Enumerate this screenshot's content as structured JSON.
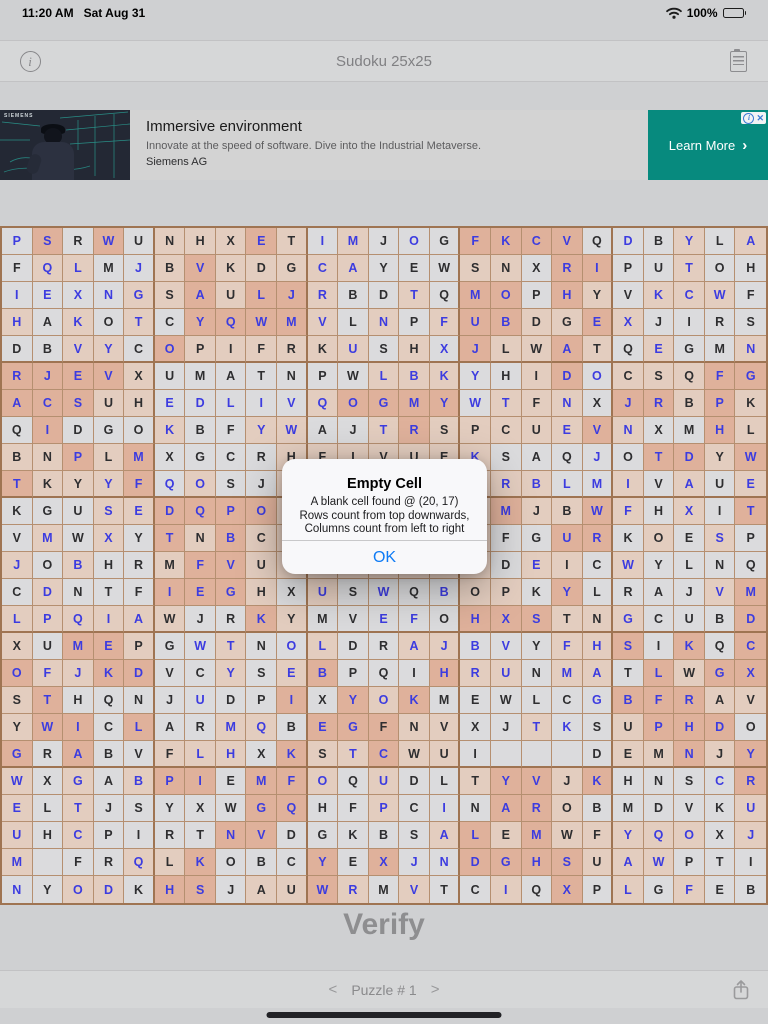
{
  "status_bar": {
    "time": "11:20 AM",
    "date": "Sat Aug 31",
    "battery_pct": "100%"
  },
  "nav_bar": {
    "title": "Sudoku 25x25"
  },
  "ad": {
    "brand": "SIEMENS",
    "headline": "Immersive environment",
    "body": "Innovate at the speed of software. Dive into the Industrial Metaverse.",
    "advertiser": "Siemens AG",
    "cta": "Learn More",
    "cta_chevron": "›",
    "adchoices_x": "✕",
    "adchoices_i": "i",
    "accent_color": "#078a7e"
  },
  "grid": {
    "size": 25,
    "palette": {
      "bg0": "#dbdbdd",
      "bg1": "#e3cdbf",
      "bg2": "#dfb19b",
      "blue": "#3c3ce0",
      "black": "#2e2e30",
      "border_thin": "#b58f70",
      "border_thick": "#9f7452"
    },
    "rows": [
      {
        "l": "PSRWUNHXETIMJOGFKCVQDBYLA",
        "c": "bbkbkkkkbkbbkbkbbbbkbkbkb",
        "g": "0202011121010002222000101"
      },
      {
        "l": "FQLMJBVKDGCAYEWSNXRIPUTOH",
        "c": "kbbkbkbkkkbbkkkkkkbbkkbkk",
        "g": "0110012111110001102200100"
      },
      {
        "l": "IEXNGSAULJRBDTQMOPHYVKCWF",
        "c": "bbbbbkbkbbbkkbkbbkbkkbbbk",
        "g": "0000112122100102202101110"
      },
      {
        "l": "HAKOTCYQWMVLNPFUBDGEXJIRS",
        "c": "bkbkbkbbbbbkbkbbbkkbbkkkk",
        "g": "1010102222101012211210000"
      },
      {
        "l": "DBVYCOPIFRKUSHXJLWATQEGMN",
        "c": "kkbbkbkkkkkbkkbbkkbkkbkkb",
        "g": "0011021111110102112101001"
      },
      {
        "l": "RJEVXUMATNPWLBKYHIDOCSQFG",
        "c": "bbbbkkkkkkkkbbbbkkbbkkkbb",
        "g": "2222100000001110012011122"
      },
      {
        "l": "ACSUHEDLIVQOGMYWTFNXJRBPK",
        "c": "bbbkkbbbbbbbbbbbbkbkbbkbk",
        "g": "2221100000122220111022121"
      },
      {
        "l": "QIDGOKBFYWAJTRSPCUEVNXMHL",
        "c": "kbkkkbkkbbkkbbkkkkbbbkkbk",
        "g": "0200010011001211111210021"
      },
      {
        "l": "BNPLMXGCRHFIVUEKSAQJOTDYW",
        "c": "kkbkbkkkkkkkkkkbkkkbkbbkb",
        "g": "1121200001111111000002212"
      },
      {
        "l": "TKYYFQOSJPDNHXCGRBLMIVAUE",
        "c": "bkkbbbbkkkkkkkkkbbbbbkbkb",
        "g": "2111201001111111110010101"
      },
      {
        "l": "KGUSEDQPOLNCAYRVMJBWFHXIT",
        "c": "kkkbbbbbbkkkkkkkbkkbbkbkb",
        "g": "0001122221111111211210102"
      },
      {
        "l": "VMWXYTNBCAJHILDQFGURKOESP",
        "c": "kbkbkbkbkkkkkkkkkkbbkkkbk",
        "g": "0101021211111111002201010"
      },
      {
        "l": "JOBHRMFVUSTXKGPADEICWYLNQ",
        "c": "bkbkkkbbkkkkkkkkkbkkbkkkk",
        "g": "1010012211111111011010000"
      },
      {
        "l": "CDNTFIEGHXUSWQBOPKYLRAJVM",
        "c": "kbkkkbbbkkbkbkbkkkbkkkkbb",
        "g": "0100022210100001102000012"
      },
      {
        "l": "LPQIAWJRKYMVEFOHXSTNGCUBD",
        "c": "bbbbbkkkbkkkbbkbbbkkbkkkb",
        "g": "1111110021000002221110002"
      },
      {
        "l": "XUMEPGWTNOLDRAJBVYFHSIKQC",
        "c": "kkbbkkbbkbbkkbbbbkbbbkbkb",
        "g": "1022100100100110001120202"
      },
      {
        "l": "OFJKDVCYSEBPQIHRUNMATLWGX",
        "c": "bbbbbkkbkbbkkkbbbkbbkbkbb",
        "g": "2112200101200021101102122"
      },
      {
        "l": "STHQNJUDPIXYOKMEWLCGBFRAV",
        "c": "kbkkkkbkkbkbbbkkkkkbbbbkk",
        "g": "1200000002021200000022211"
      },
      {
        "l": "YWICLARMQBEGFNVXJTKSUPHDO",
        "c": "kbbkbkkbbkbbkkkkkbbkkbbbk",
        "g": "1220200110222110010012220"
      },
      {
        "l": "GRABVFLHXKSTCWUI   DEMNJY",
        "c": "bkbkkkbbkbkbbkkk...kkkbkb",
        "g": "2020011102112110000011212"
      },
      {
        "l": "WXGABPIEMFOQUDLTYVJKHNSCR",
        "c": "bkbkbbbkbbbkbkkkbbkbkkkbb",
        "g": "1010122022101001221200002"
      },
      {
        "l": "ELTJSYXWGQHFPCINAROBMDVKU",
        "c": "bkbkkkkkbbkkbkbkbbkkkkkkb",
        "g": "1010000022001000221000001"
      },
      {
        "l": "UHCPIRTNVDGKBSALEMWFYQOXJ",
        "c": "bkbkkkkbbkkkkkbbkbkkbbbkb",
        "g": "1010000220000012121111101"
      },
      {
        "l": "M FRQLKOBCYEXJNDGHSUAWPTI",
        "c": "b.kkbkbkkkbkbbbbbbbkbbkkk",
        "g": "1000112000202002222111000"
      },
      {
        "l": "NYODKHSJAUWRMVTCIQXPLGFEB",
        "c": "bkbbkbbkkkbbkbkkbkbkbkbkk",
        "g": "0011022011210100102010100"
      }
    ]
  },
  "dialog": {
    "title": "Empty Cell",
    "line1": "A blank cell found @ (20, 17)",
    "line2": "Rows count from top downwards,",
    "line3": "Columns count from left to right",
    "ok": "OK"
  },
  "footer": {
    "verify": "Verify",
    "prev": "<",
    "puzzle": "Puzzle # 1",
    "next": ">"
  }
}
